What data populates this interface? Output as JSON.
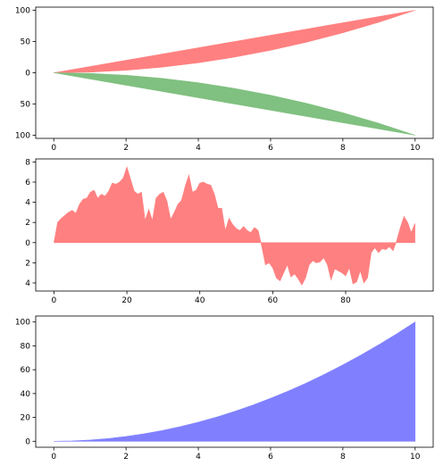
{
  "chart_data": [
    {
      "type": "area",
      "title": "",
      "xlabel": "",
      "ylabel": "",
      "xlim": [
        -0.5,
        10.5
      ],
      "ylim": [
        -105,
        105
      ],
      "x_ticks": [
        0,
        2,
        4,
        6,
        8,
        10
      ],
      "x_tick_labels": [
        "0",
        "2",
        "4",
        "6",
        "8",
        "10"
      ],
      "y_ticks": [
        100,
        50,
        0,
        -50,
        -100
      ],
      "y_tick_labels": [
        "100",
        "50",
        "0",
        "50",
        "100"
      ],
      "grid": false,
      "series": [
        {
          "color": "#ff8080",
          "x": [
            0,
            1,
            2,
            3,
            4,
            5,
            6,
            7,
            8,
            9,
            10
          ],
          "upper": [
            0,
            10,
            20,
            30,
            40,
            50,
            60,
            70,
            80,
            90,
            100
          ],
          "lower": [
            0,
            1,
            4,
            9,
            16,
            25,
            36,
            49,
            64,
            81,
            100
          ]
        },
        {
          "color": "#80c080",
          "x": [
            0,
            1,
            2,
            3,
            4,
            5,
            6,
            7,
            8,
            9,
            10
          ],
          "upper": [
            0,
            -1,
            -4,
            -9,
            -16,
            -25,
            -36,
            -49,
            -64,
            -81,
            -100
          ],
          "lower": [
            0,
            -10,
            -20,
            -30,
            -40,
            -50,
            -60,
            -70,
            -80,
            -90,
            -100
          ]
        }
      ]
    },
    {
      "type": "area",
      "title": "",
      "xlabel": "",
      "ylabel": "",
      "xlim": [
        -5,
        104
      ],
      "ylim": [
        -4.8,
        8.3
      ],
      "x_ticks": [
        0,
        20,
        40,
        60,
        80
      ],
      "x_tick_labels": [
        "0",
        "20",
        "40",
        "60",
        "80"
      ],
      "y_ticks": [
        8,
        6,
        4,
        2,
        0,
        -2,
        -4
      ],
      "y_tick_labels": [
        "8",
        "6",
        "4",
        "2",
        "0",
        "2",
        "4"
      ],
      "grid": false,
      "series": [
        {
          "color": "#ff8080",
          "x_start": 0,
          "values": [
            0.0,
            2.0,
            2.4,
            2.7,
            3.0,
            3.2,
            2.9,
            3.8,
            4.3,
            4.4,
            5.0,
            5.2,
            4.4,
            4.8,
            4.6,
            5.1,
            5.9,
            5.8,
            6.0,
            6.4,
            7.5,
            6.3,
            5.1,
            4.8,
            5.0,
            2.2,
            3.3,
            2.2,
            4.4,
            4.8,
            5.0,
            4.1,
            2.3,
            3.0,
            3.8,
            4.2,
            5.6,
            6.7,
            5.0,
            5.2,
            5.9,
            6.0,
            5.8,
            5.7,
            4.8,
            3.4,
            3.4,
            1.2,
            2.4,
            1.8,
            1.4,
            1.2,
            1.6,
            1.2,
            1.0,
            1.5,
            1.2,
            -0.4,
            -2.2,
            -2.0,
            -2.5,
            -3.5,
            -3.8,
            -3.0,
            -2.2,
            -3.4,
            -3.1,
            -3.6,
            -4.2,
            -3.5,
            -2.2,
            -1.8,
            -2.0,
            -1.9,
            -1.5,
            -2.2,
            -3.7,
            -2.6,
            -2.8,
            -3.0,
            -3.3,
            -2.5,
            -4.1,
            -3.9,
            -2.8,
            -4.0,
            -3.5,
            -1.0,
            -0.5,
            -1.0,
            -0.6,
            -0.7,
            -0.4,
            -0.8,
            0.2,
            1.5,
            2.6,
            2.0,
            1.0,
            1.9
          ]
        }
      ]
    },
    {
      "type": "area",
      "title": "",
      "xlabel": "",
      "ylabel": "",
      "xlim": [
        -0.5,
        10.5
      ],
      "ylim": [
        -5,
        105
      ],
      "x_ticks": [
        0,
        2,
        4,
        6,
        8,
        10
      ],
      "x_tick_labels": [
        "0",
        "2",
        "4",
        "6",
        "8",
        "10"
      ],
      "y_ticks": [
        0,
        20,
        40,
        60,
        80,
        100
      ],
      "y_tick_labels": [
        "0",
        "20",
        "40",
        "60",
        "80",
        "100"
      ],
      "grid": false,
      "series": [
        {
          "color": "#8080ff",
          "x": [
            0,
            0.5,
            1,
            1.5,
            2,
            2.5,
            3,
            3.5,
            4,
            4.5,
            5,
            5.5,
            6,
            6.5,
            7,
            7.5,
            8,
            8.5,
            9,
            9.5,
            10
          ],
          "upper": [
            0,
            0.25,
            1,
            2.25,
            4,
            6.25,
            9,
            12.25,
            16,
            20.25,
            25,
            30.25,
            36,
            42.25,
            49,
            56.25,
            64,
            72.25,
            81,
            90.25,
            100
          ],
          "lower": [
            0,
            0,
            0,
            0,
            0,
            0,
            0,
            0,
            0,
            0,
            0,
            0,
            0,
            0,
            0,
            0,
            0,
            0,
            0,
            0,
            0
          ]
        }
      ]
    }
  ]
}
